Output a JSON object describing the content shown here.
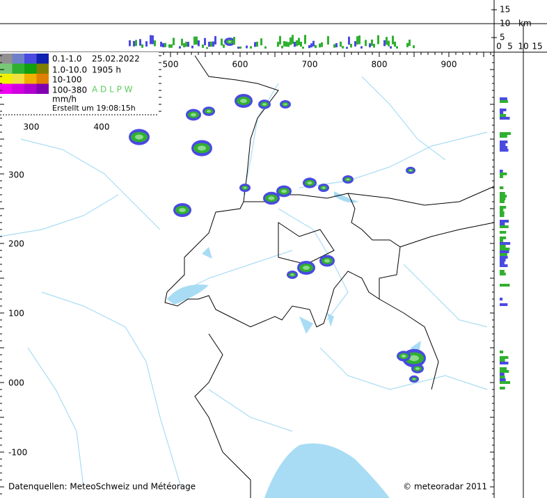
{
  "legend": {
    "ranges": [
      "0.1-1.0",
      "1.0-10.0",
      "10-100",
      "100-380"
    ],
    "unit": "mm/h",
    "date": "25.02.2022",
    "time": "1905 h",
    "stations": "A D L P W",
    "created": "Erstellt um 19:08:15h"
  },
  "axes": {
    "top_x": [
      "500",
      "600",
      "700",
      "800",
      "900"
    ],
    "inner_x": [
      "300",
      "400"
    ],
    "left_y": [
      "300",
      "200",
      "100",
      "000",
      "-100"
    ],
    "height_ticks": [
      "15",
      "10",
      "5"
    ],
    "height_unit": "km",
    "profile_ticks": [
      "0",
      "5",
      "10",
      "15"
    ]
  },
  "footer": {
    "source": "Datenquellen: MeteoSchweiz und Météorage",
    "copyright": "© meteoradar 2011"
  }
}
